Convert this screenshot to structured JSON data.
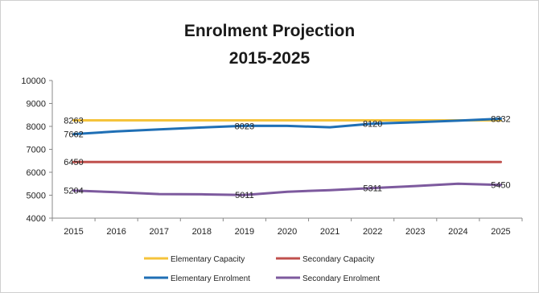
{
  "chart_data": {
    "type": "line",
    "title_lines": [
      "Enrolment Projection",
      "2015-2025"
    ],
    "xlabel": "",
    "ylabel": "",
    "x": [
      "2015",
      "2016",
      "2017",
      "2018",
      "2019",
      "2020",
      "2021",
      "2022",
      "2023",
      "2024",
      "2025"
    ],
    "ylim": [
      4000,
      10000
    ],
    "yticks": [
      4000,
      5000,
      6000,
      7000,
      8000,
      9000,
      10000
    ],
    "grid": false,
    "legend_position": "bottom",
    "series": [
      {
        "name": "Elementary Capacity",
        "color": "#f5c33b",
        "values": [
          8263,
          8263,
          8263,
          8263,
          8263,
          8263,
          8263,
          8263,
          8263,
          8263,
          8263
        ],
        "labels": {
          "0": "8263"
        }
      },
      {
        "name": "Secondary Capacity",
        "color": "#c0504d",
        "values": [
          6450,
          6450,
          6450,
          6450,
          6450,
          6450,
          6450,
          6450,
          6450,
          6450,
          6450
        ],
        "labels": {
          "0": "6450"
        }
      },
      {
        "name": "Elementary Enrolment",
        "color": "#1f6fb5",
        "values": [
          7662,
          7780,
          7870,
          7950,
          8023,
          8020,
          7960,
          8120,
          8180,
          8250,
          8332
        ],
        "labels": {
          "0": "7662",
          "4": "8023",
          "7": "8120",
          "10": "8332"
        }
      },
      {
        "name": "Secondary Enrolment",
        "color": "#7d5a9e",
        "values": [
          5204,
          5130,
          5050,
          5040,
          5011,
          5150,
          5220,
          5311,
          5400,
          5500,
          5450
        ],
        "labels": {
          "0": "5204",
          "4": "5011",
          "7": "5311",
          "10": "5450"
        }
      }
    ]
  }
}
